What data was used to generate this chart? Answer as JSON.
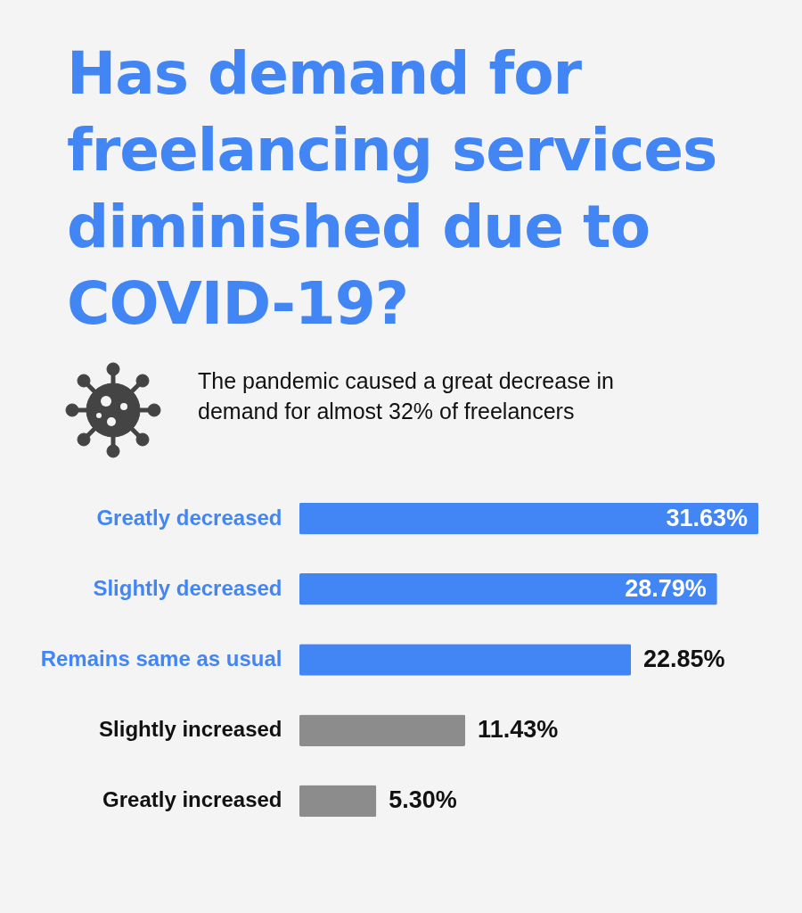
{
  "chart_data": {
    "type": "bar",
    "orientation": "horizontal",
    "title": "Has demand for freelancing services diminished due to COVID-19?",
    "subtitle": "The pandemic caused a great decrease in demand for almost 32% of freelancers",
    "categories": [
      "Greatly decreased",
      "Slightly decreased",
      "Remains same as usual",
      "Slightly increased",
      "Greatly increased"
    ],
    "values": [
      31.63,
      28.79,
      22.85,
      11.43,
      5.3
    ],
    "value_labels": [
      "31.63%",
      "28.79%",
      "22.85%",
      "11.43%",
      "5.30%"
    ],
    "colors": [
      "#4285f4",
      "#4285f4",
      "#4285f4",
      "#8c8c8c",
      "#8c8c8c"
    ]
  }
}
